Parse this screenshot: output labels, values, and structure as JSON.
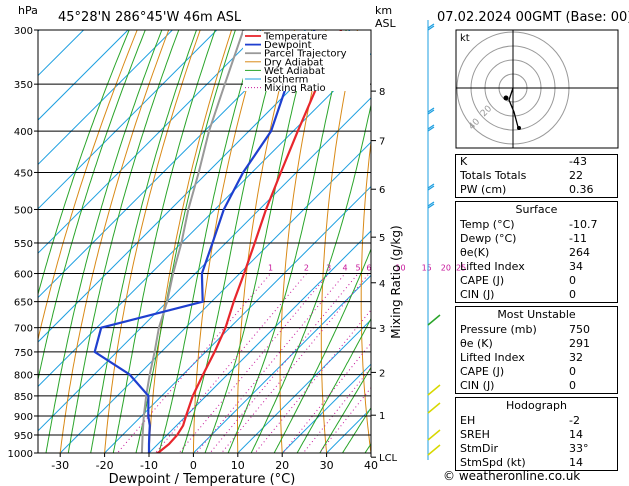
{
  "header": {
    "units_left": "hPa",
    "location": "45°28'N  286°45'W  46m  ASL",
    "units_right_km": "km",
    "units_right_asl": "ASL",
    "datetime": "07.02.2024  00GMT  (Base: 00)"
  },
  "chart_data": {
    "type": "line",
    "title": "45°28'N  286°45'W  46m  ASL",
    "xlabel": "Dewpoint / Temperature (°C)",
    "ylabel_left": "hPa",
    "ylabel_right": "Mixing Ratio (g/kg)",
    "xlim": [
      -35,
      40
    ],
    "ylim": [
      1000,
      300
    ],
    "y_scale": "log",
    "x_ticks": [
      "-30",
      "-20",
      "-10",
      "0",
      "10",
      "20",
      "30",
      "40"
    ],
    "pressure_ticks": [
      "300",
      "350",
      "400",
      "450",
      "500",
      "550",
      "600",
      "650",
      "700",
      "750",
      "800",
      "850",
      "900",
      "950",
      "1000"
    ],
    "km_ticks": [
      {
        "label": "8",
        "p": 357
      },
      {
        "label": "7",
        "p": 411
      },
      {
        "label": "6",
        "p": 472
      },
      {
        "label": "5",
        "p": 541
      },
      {
        "label": "4",
        "p": 616
      },
      {
        "label": "3",
        "p": 701
      },
      {
        "label": "2",
        "p": 795
      },
      {
        "label": "1",
        "p": 898
      },
      {
        "label": "LCL",
        "p": 1012
      }
    ],
    "mixing_ratio_labels": [
      "1",
      "2",
      "3",
      "4",
      "5",
      "6",
      "10",
      "15",
      "20",
      "25"
    ],
    "mixing_ratio_values": [
      1,
      2,
      3,
      4,
      5,
      6,
      10,
      15,
      20,
      25
    ],
    "legend": [
      "Temperature",
      "Dewpoint",
      "Parcel Trajectory",
      "Dry Adiabat",
      "Wet Adiabat",
      "Isotherm",
      "Mixing Ratio"
    ],
    "legend_placement": "top-left",
    "skew": 45,
    "series": [
      {
        "name": "Temperature",
        "color": "#e8262c",
        "points": [
          [
            1012,
            -10.7
          ],
          [
            1000,
            -8
          ],
          [
            975,
            -7.5
          ],
          [
            950,
            -7.7
          ],
          [
            925,
            -8.5
          ],
          [
            900,
            -10
          ],
          [
            850,
            -13
          ],
          [
            800,
            -15.5
          ],
          [
            750,
            -18
          ],
          [
            700,
            -21
          ],
          [
            650,
            -25
          ],
          [
            600,
            -29
          ],
          [
            550,
            -33.5
          ],
          [
            500,
            -38.5
          ],
          [
            450,
            -43.5
          ],
          [
            400,
            -49
          ],
          [
            350,
            -55
          ],
          [
            300,
            -62
          ]
        ]
      },
      {
        "name": "Dewpoint",
        "color": "#1f3fcf",
        "points": [
          [
            1012,
            -11
          ],
          [
            1000,
            -10
          ],
          [
            975,
            -12
          ],
          [
            950,
            -14
          ],
          [
            925,
            -16
          ],
          [
            900,
            -18.5
          ],
          [
            850,
            -23
          ],
          [
            800,
            -32
          ],
          [
            750,
            -45
          ],
          [
            700,
            -49
          ],
          [
            650,
            -32
          ],
          [
            600,
            -38.5
          ],
          [
            550,
            -43
          ],
          [
            500,
            -48
          ],
          [
            450,
            -52
          ],
          [
            400,
            -55
          ],
          [
            350,
            -62
          ],
          [
            300,
            -68
          ]
        ]
      },
      {
        "name": "Parcel Trajectory",
        "color": "#999999",
        "points": [
          [
            1012,
            -10.7
          ],
          [
            950,
            -15.5
          ],
          [
            900,
            -19.5
          ],
          [
            850,
            -23.5
          ],
          [
            800,
            -27.5
          ],
          [
            750,
            -31.5
          ],
          [
            700,
            -36
          ],
          [
            650,
            -40
          ],
          [
            600,
            -45
          ],
          [
            550,
            -50
          ],
          [
            500,
            -56
          ],
          [
            450,
            -62
          ],
          [
            400,
            -69
          ],
          [
            350,
            -76
          ],
          [
            300,
            -84
          ]
        ]
      }
    ]
  },
  "hodograph": {
    "unit_label": "kt",
    "ring_labels": [
      "20",
      "40"
    ]
  },
  "table": {
    "top": [
      {
        "k": "K",
        "v": "-43"
      },
      {
        "k": "Totals Totals",
        "v": "22"
      },
      {
        "k": "PW (cm)",
        "v": "0.36"
      }
    ],
    "surface": {
      "title": "Surface",
      "rows": [
        {
          "k": "Temp (°C)",
          "v": "-10.7"
        },
        {
          "k": "Dewp (°C)",
          "v": "-11"
        },
        {
          "k": "θe(K)",
          "v": "264"
        },
        {
          "k": "Lifted Index",
          "v": "34"
        },
        {
          "k": "CAPE (J)",
          "v": "0"
        },
        {
          "k": "CIN (J)",
          "v": "0"
        }
      ]
    },
    "most_unstable": {
      "title": "Most Unstable",
      "rows": [
        {
          "k": "Pressure (mb)",
          "v": "750"
        },
        {
          "k": "θe (K)",
          "v": "291"
        },
        {
          "k": "Lifted Index",
          "v": "32"
        },
        {
          "k": "CAPE (J)",
          "v": "0"
        },
        {
          "k": "CIN (J)",
          "v": "0"
        }
      ]
    },
    "hodograph": {
      "title": "Hodograph",
      "rows": [
        {
          "k": "EH",
          "v": "-2"
        },
        {
          "k": "SREH",
          "v": "14"
        },
        {
          "k": "StmDir",
          "v": "33°"
        },
        {
          "k": "StmSpd (kt)",
          "v": "14"
        }
      ]
    }
  },
  "footer": {
    "copyright": "© weatheronline.co.uk"
  },
  "colors": {
    "temperature": "#e8262c",
    "dewpoint": "#1f3fcf",
    "dry_adiabat": "#d98a17",
    "wet_adiabat": "#2aa52a",
    "isotherm": "#1d9fe0",
    "mixing_ratio": "#c6149a",
    "wind": "#d8d800"
  }
}
